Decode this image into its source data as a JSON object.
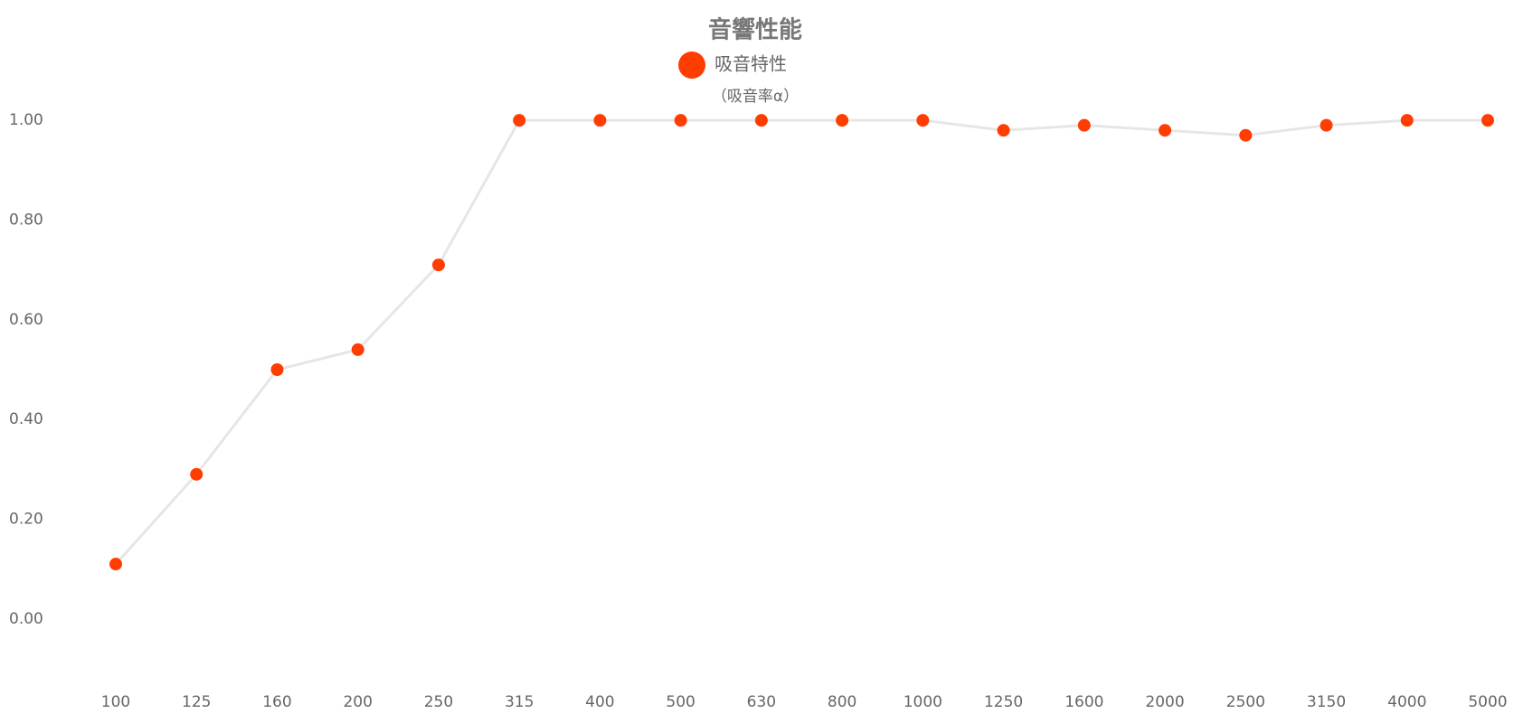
{
  "chart_data": {
    "type": "line",
    "title": "音響性能",
    "subtitle": "（吸音率α）",
    "categories": [
      "100",
      "125",
      "160",
      "200",
      "250",
      "315",
      "400",
      "500",
      "630",
      "800",
      "1000",
      "1250",
      "1600",
      "2000",
      "2500",
      "3150",
      "4000",
      "5000"
    ],
    "series": [
      {
        "name": "吸音特性",
        "color": "#ff3d00",
        "line_color": "#e6e6e6",
        "values": [
          0.11,
          0.29,
          0.5,
          0.54,
          0.71,
          1,
          1,
          1,
          1,
          1,
          1,
          0.98,
          0.99,
          0.98,
          0.97,
          0.99,
          1,
          1
        ]
      }
    ],
    "ylim": [
      -0.1,
      1.1
    ],
    "yticks": [
      {
        "value": 0,
        "label": "0.00"
      },
      {
        "value": 0.2,
        "label": "0.20"
      },
      {
        "value": 0.4,
        "label": "0.40"
      },
      {
        "value": 0.6,
        "label": "0.60"
      },
      {
        "value": 0.8,
        "label": "0.80"
      },
      {
        "value": 1,
        "label": "1.00"
      }
    ],
    "grid": false
  }
}
